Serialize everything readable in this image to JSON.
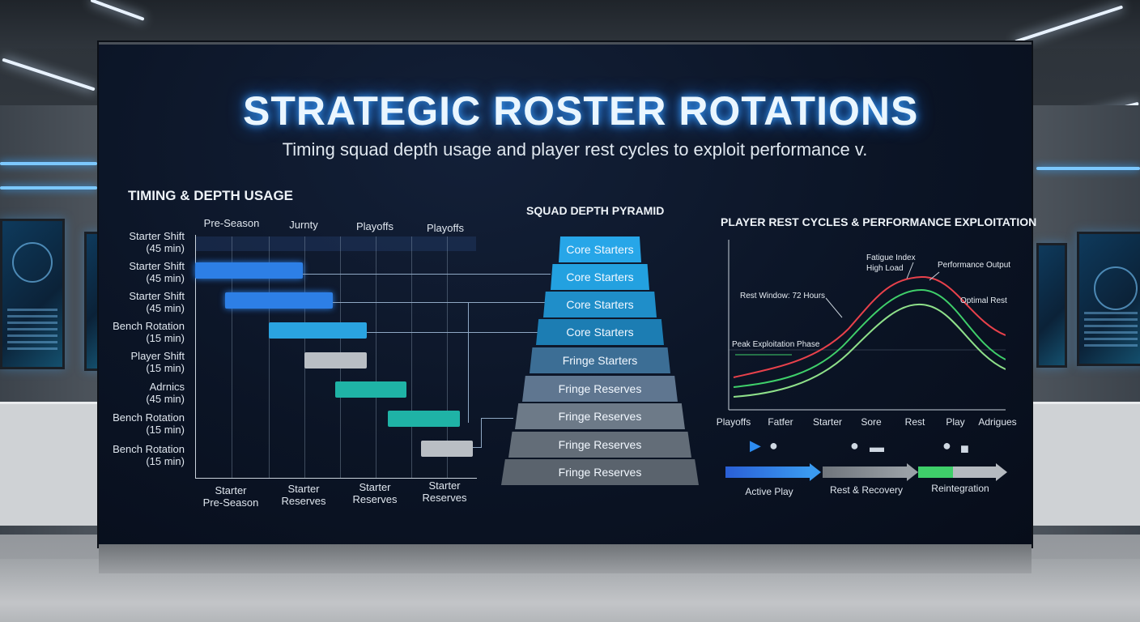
{
  "header": {
    "title": "STRATEGIC ROSTER ROTATIONS",
    "subtitle": "Timing squad depth usage and player rest cycles to exploit performance v."
  },
  "timing": {
    "title": "TIMING & DEPTH USAGE",
    "columns": [
      "Pre-Season",
      "Jurnty",
      "Playoffs",
      "Playoffs"
    ],
    "rows": [
      {
        "line1": "Starter Shift",
        "line2": "(45 min)"
      },
      {
        "line1": "Starter Shift",
        "line2": "(45 min)"
      },
      {
        "line1": "Starter Shift",
        "line2": "(45 min)"
      },
      {
        "line1": "Bench Rotation",
        "line2": "(15 min)"
      },
      {
        "line1": "Player Shift",
        "line2": "(15 min)"
      },
      {
        "line1": "Adrnics",
        "line2": "(45 min)"
      },
      {
        "line1": "Bench Rotation",
        "line2": "(15 min)"
      },
      {
        "line1": "Bench Rotation",
        "line2": "(15 min)"
      }
    ],
    "footer": [
      {
        "line1": "Starter",
        "line2": "Pre-Season"
      },
      {
        "line1": "Starter",
        "line2": "Reserves"
      },
      {
        "line1": "Starter",
        "line2": "Reserves"
      },
      {
        "line1": "Starter",
        "line2": "Reserves"
      }
    ],
    "colors": {
      "blue": "#2d7fe6",
      "lightblue": "#2aa3e0",
      "gray": "#b9bec4",
      "teal": "#1fb3a6"
    }
  },
  "pyramid": {
    "title": "SQUAD DEPTH PYRAMID",
    "tiers": [
      "Core Starters",
      "Core Starters",
      "Core Starters",
      "Core Starters",
      "Fringe Starters",
      "Fringe Reserves",
      "Fringe Reserves",
      "Fringe Reserves",
      "Fringe Reserves"
    ]
  },
  "rest": {
    "title": "PLAYER REST CYCLES & PERFORMANCE EXPLOITATION",
    "annotations": {
      "fatigue_line1": "Fatigue Index",
      "fatigue_line2": "High Load",
      "performance": "Performance Output",
      "rest_window": "Rest Window: 72 Hours",
      "optimal": "Optimal Rest",
      "peak": "Peak Exploitation Phase"
    },
    "x_labels": [
      "Playoffs",
      "Fatfer",
      "Starter",
      "Sore",
      "Rest",
      "Play",
      "Adrigues"
    ],
    "series_colors": {
      "fatigue": "#e8414b",
      "performance": "#3fcf6a",
      "rest": "#8fe08a"
    },
    "phases": [
      {
        "label": "Active Play",
        "icon": "running-person-icon",
        "color": "#2a7be6"
      },
      {
        "label": "Rest & Recovery",
        "icon": "resting-person-icon",
        "color": "#8a8f95"
      },
      {
        "label": "Reintegration",
        "icon": "bed-person-icon",
        "color": "#3fcf6a"
      }
    ]
  }
}
